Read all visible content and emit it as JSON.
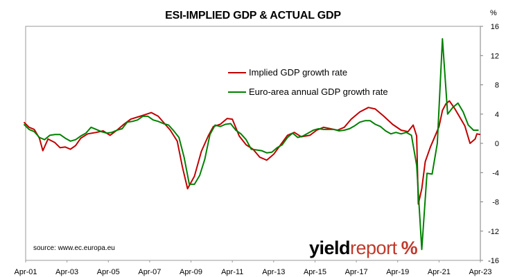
{
  "chart_data": {
    "type": "line",
    "title": "ESI-IMPLIED GDP & ACTUAL GDP",
    "y_unit": "%",
    "ylim": [
      -16,
      16
    ],
    "y_ticks": [
      16,
      12,
      8,
      4,
      0,
      -4,
      -8,
      -12,
      -16
    ],
    "y_tick_labels": [
      "16",
      "12",
      "8",
      "4",
      "0",
      "-4",
      "-8",
      "-12",
      "-16"
    ],
    "x_range": [
      "2001-04",
      "2023-04"
    ],
    "x_ticks": [
      "2001-04",
      "2003-04",
      "2005-04",
      "2007-04",
      "2009-04",
      "2011-04",
      "2013-04",
      "2015-04",
      "2017-04",
      "2019-04",
      "2021-04",
      "2023-04"
    ],
    "x_tick_labels": [
      "Apr-01",
      "Apr-03",
      "Apr-05",
      "Apr-07",
      "Apr-09",
      "Apr-11",
      "Apr-13",
      "Apr-15",
      "Apr-17",
      "Apr-19",
      "Apr-21",
      "Apr-23"
    ],
    "grid": false,
    "legend_position": "top-center",
    "source": "source: www.ec.europa.eu",
    "series": [
      {
        "name": "Implied GDP growth rate",
        "color": "#c00000",
        "points": [
          [
            "2001-03",
            2.9
          ],
          [
            "2001-06",
            2.2
          ],
          [
            "2001-09",
            1.9
          ],
          [
            "2001-12",
            0.7
          ],
          [
            "2002-02",
            -1.0
          ],
          [
            "2002-05",
            0.6
          ],
          [
            "2002-09",
            0.1
          ],
          [
            "2002-12",
            -0.6
          ],
          [
            "2003-03",
            -0.5
          ],
          [
            "2003-06",
            -0.8
          ],
          [
            "2003-09",
            -0.3
          ],
          [
            "2003-12",
            0.7
          ],
          [
            "2004-04",
            1.3
          ],
          [
            "2004-09",
            1.5
          ],
          [
            "2005-01",
            1.7
          ],
          [
            "2005-05",
            1.1
          ],
          [
            "2005-09",
            1.8
          ],
          [
            "2006-01",
            2.6
          ],
          [
            "2006-05",
            3.3
          ],
          [
            "2006-09",
            3.6
          ],
          [
            "2007-01",
            3.9
          ],
          [
            "2007-05",
            4.2
          ],
          [
            "2007-09",
            3.7
          ],
          [
            "2008-01",
            2.6
          ],
          [
            "2008-04",
            1.8
          ],
          [
            "2008-08",
            0.3
          ],
          [
            "2008-11",
            -3.2
          ],
          [
            "2009-02",
            -6.2
          ],
          [
            "2009-06",
            -4.5
          ],
          [
            "2009-10",
            -1.1
          ],
          [
            "2010-02",
            1.0
          ],
          [
            "2010-05",
            2.3
          ],
          [
            "2010-09",
            2.6
          ],
          [
            "2011-01",
            3.4
          ],
          [
            "2011-04",
            3.3
          ],
          [
            "2011-08",
            1.0
          ],
          [
            "2011-12",
            -0.2
          ],
          [
            "2012-04",
            -0.8
          ],
          [
            "2012-08",
            -1.9
          ],
          [
            "2012-12",
            -2.3
          ],
          [
            "2013-04",
            -1.5
          ],
          [
            "2013-08",
            -0.2
          ],
          [
            "2013-12",
            1.1
          ],
          [
            "2014-04",
            1.5
          ],
          [
            "2014-08",
            0.9
          ],
          [
            "2015-01",
            1.1
          ],
          [
            "2015-05",
            1.8
          ],
          [
            "2015-09",
            2.2
          ],
          [
            "2016-01",
            2.0
          ],
          [
            "2016-05",
            1.8
          ],
          [
            "2016-09",
            2.2
          ],
          [
            "2017-01",
            3.3
          ],
          [
            "2017-06",
            4.3
          ],
          [
            "2017-11",
            4.9
          ],
          [
            "2018-03",
            4.7
          ],
          [
            "2018-08",
            3.7
          ],
          [
            "2019-01",
            2.6
          ],
          [
            "2019-06",
            1.8
          ],
          [
            "2019-10",
            1.6
          ],
          [
            "2020-01",
            2.5
          ],
          [
            "2020-03",
            1.0
          ],
          [
            "2020-04",
            -8.3
          ],
          [
            "2020-06",
            -6.2
          ],
          [
            "2020-08",
            -2.5
          ],
          [
            "2020-11",
            -0.5
          ],
          [
            "2021-01",
            0.6
          ],
          [
            "2021-04",
            2.3
          ],
          [
            "2021-06",
            4.5
          ],
          [
            "2021-08",
            5.4
          ],
          [
            "2021-10",
            5.8
          ],
          [
            "2022-01",
            4.8
          ],
          [
            "2022-04",
            3.6
          ],
          [
            "2022-07",
            2.4
          ],
          [
            "2022-10",
            0.0
          ],
          [
            "2023-01",
            0.6
          ],
          [
            "2023-02",
            1.3
          ],
          [
            "2023-04",
            1.2
          ]
        ]
      },
      {
        "name": "Euro-area annual GDP growth rate",
        "color": "#008000",
        "points": [
          [
            "2001-03",
            2.6
          ],
          [
            "2001-06",
            1.9
          ],
          [
            "2001-09",
            1.6
          ],
          [
            "2001-12",
            0.8
          ],
          [
            "2002-03",
            0.5
          ],
          [
            "2002-06",
            1.1
          ],
          [
            "2002-09",
            1.2
          ],
          [
            "2002-12",
            1.2
          ],
          [
            "2003-03",
            0.7
          ],
          [
            "2003-06",
            0.3
          ],
          [
            "2003-09",
            0.5
          ],
          [
            "2003-12",
            1.0
          ],
          [
            "2004-03",
            1.4
          ],
          [
            "2004-06",
            2.2
          ],
          [
            "2004-09",
            1.9
          ],
          [
            "2004-12",
            1.6
          ],
          [
            "2005-03",
            1.4
          ],
          [
            "2005-06",
            1.5
          ],
          [
            "2005-09",
            1.8
          ],
          [
            "2005-12",
            2.0
          ],
          [
            "2006-03",
            2.9
          ],
          [
            "2006-06",
            3.0
          ],
          [
            "2006-09",
            3.2
          ],
          [
            "2006-12",
            3.7
          ],
          [
            "2007-03",
            3.7
          ],
          [
            "2007-06",
            3.2
          ],
          [
            "2007-09",
            3.0
          ],
          [
            "2007-12",
            2.7
          ],
          [
            "2008-03",
            2.5
          ],
          [
            "2008-06",
            1.7
          ],
          [
            "2008-09",
            0.8
          ],
          [
            "2008-12",
            -1.9
          ],
          [
            "2009-03",
            -5.6
          ],
          [
            "2009-06",
            -5.6
          ],
          [
            "2009-09",
            -4.4
          ],
          [
            "2009-12",
            -2.2
          ],
          [
            "2010-03",
            1.2
          ],
          [
            "2010-06",
            2.5
          ],
          [
            "2010-09",
            2.3
          ],
          [
            "2010-12",
            2.6
          ],
          [
            "2011-03",
            2.7
          ],
          [
            "2011-06",
            1.8
          ],
          [
            "2011-09",
            1.3
          ],
          [
            "2011-12",
            0.5
          ],
          [
            "2012-03",
            -0.8
          ],
          [
            "2012-06",
            -0.9
          ],
          [
            "2012-09",
            -1.0
          ],
          [
            "2012-12",
            -1.3
          ],
          [
            "2013-03",
            -1.2
          ],
          [
            "2013-06",
            -0.6
          ],
          [
            "2013-09",
            -0.2
          ],
          [
            "2013-12",
            0.8
          ],
          [
            "2014-03",
            1.4
          ],
          [
            "2014-06",
            0.8
          ],
          [
            "2014-09",
            1.0
          ],
          [
            "2014-12",
            1.4
          ],
          [
            "2015-03",
            1.8
          ],
          [
            "2015-06",
            2.0
          ],
          [
            "2015-09",
            1.9
          ],
          [
            "2015-12",
            1.9
          ],
          [
            "2016-03",
            1.9
          ],
          [
            "2016-06",
            1.7
          ],
          [
            "2016-09",
            1.8
          ],
          [
            "2016-12",
            2.0
          ],
          [
            "2017-03",
            2.4
          ],
          [
            "2017-06",
            2.9
          ],
          [
            "2017-09",
            3.1
          ],
          [
            "2017-12",
            3.1
          ],
          [
            "2018-03",
            2.6
          ],
          [
            "2018-06",
            2.3
          ],
          [
            "2018-09",
            1.7
          ],
          [
            "2018-12",
            1.3
          ],
          [
            "2019-03",
            1.5
          ],
          [
            "2019-06",
            1.3
          ],
          [
            "2019-09",
            1.5
          ],
          [
            "2019-12",
            1.1
          ],
          [
            "2020-03",
            -3.0
          ],
          [
            "2020-06",
            -14.5
          ],
          [
            "2020-09",
            -4.1
          ],
          [
            "2020-12",
            -4.2
          ],
          [
            "2021-03",
            0.0
          ],
          [
            "2021-06",
            14.3
          ],
          [
            "2021-09",
            4.0
          ],
          [
            "2021-12",
            4.9
          ],
          [
            "2022-03",
            5.5
          ],
          [
            "2022-06",
            4.3
          ],
          [
            "2022-09",
            2.5
          ],
          [
            "2022-12",
            1.8
          ],
          [
            "2023-03",
            1.8
          ]
        ]
      }
    ]
  }
}
